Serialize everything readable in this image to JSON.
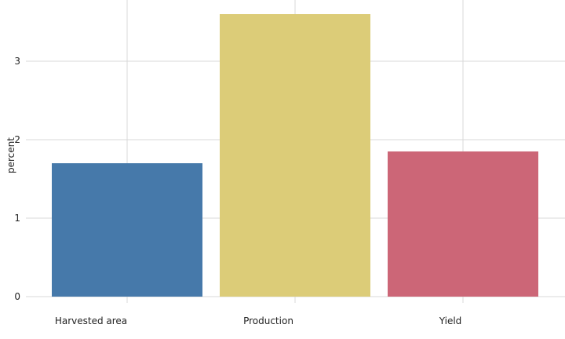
{
  "chart_data": {
    "type": "bar",
    "ylabel": "percent",
    "xlabel": "",
    "categories": [
      "Harvested area",
      "Production",
      "Yield"
    ],
    "values": [
      1.7,
      3.6,
      1.85
    ],
    "colors": [
      "#4679aa",
      "#dccc78",
      "#cc6677"
    ],
    "ylim": [
      0,
      3.6
    ],
    "yticks": [
      0,
      1,
      2,
      3
    ],
    "ytick_labels": [
      "0",
      "1",
      "2",
      "3"
    ],
    "grid": true,
    "legend": false
  }
}
